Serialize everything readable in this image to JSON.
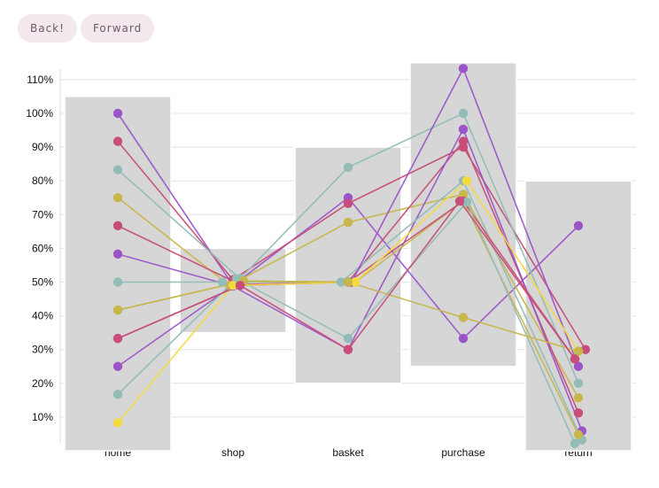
{
  "nav": {
    "back_label": "Back!",
    "forward_label": "Forward"
  },
  "chart_data": {
    "type": "line",
    "categories": [
      "home",
      "shop",
      "basket",
      "purchase",
      "return"
    ],
    "yticks": [
      "10%",
      "20%",
      "30%",
      "40%",
      "50%",
      "60%",
      "70%",
      "80%",
      "90%",
      "100%",
      "110%"
    ],
    "ylim": [
      0,
      115
    ],
    "grid": true,
    "legend": "none",
    "boxes": [
      {
        "category": "home",
        "low": 0,
        "high": 105
      },
      {
        "category": "shop",
        "low": 35,
        "high": 60
      },
      {
        "category": "basket",
        "low": 20,
        "high": 90
      },
      {
        "category": "purchase",
        "low": 25,
        "high": 115
      },
      {
        "category": "return",
        "low": 0,
        "high": 80
      }
    ],
    "series": [
      {
        "color": "#9c55c9",
        "values": [
          100,
          49,
          75,
          33.3,
          66.7
        ],
        "offsets": [
          0,
          0,
          0,
          0,
          0
        ]
      },
      {
        "color": "#c74e7a",
        "values": [
          91.7,
          50.7,
          73.3,
          90,
          30
        ],
        "offsets": [
          0,
          0,
          0,
          0,
          2
        ]
      },
      {
        "color": "#93bcb6",
        "values": [
          83.3,
          51,
          84,
          100,
          20
        ],
        "offsets": [
          0,
          2,
          0,
          0,
          0
        ]
      },
      {
        "color": "#c6b64b",
        "values": [
          75,
          49,
          67.7,
          76,
          15.7
        ],
        "offsets": [
          0,
          -1,
          0,
          0,
          0
        ]
      },
      {
        "color": "#c74e7a",
        "values": [
          66.7,
          49.3,
          50,
          91.7,
          11.2
        ],
        "offsets": [
          0,
          2,
          0,
          0,
          0
        ]
      },
      {
        "color": "#9c55c9",
        "values": [
          58.3,
          48.8,
          30,
          95.3,
          5.9
        ],
        "offsets": [
          0,
          0,
          0,
          0,
          1
        ]
      },
      {
        "color": "#93bcb6",
        "values": [
          50,
          50,
          50,
          80,
          3.2
        ],
        "offsets": [
          0,
          -3,
          -2,
          0,
          1
        ]
      },
      {
        "color": "#c6b64b",
        "values": [
          41.7,
          50.3,
          50,
          74,
          4.8
        ],
        "offsets": [
          0,
          3,
          2,
          0,
          0
        ]
      },
      {
        "color": "#c74e7a",
        "values": [
          33.3,
          49,
          50,
          74,
          27.2
        ],
        "offsets": [
          0,
          2,
          0,
          0,
          -1
        ]
      },
      {
        "color": "#9c55c9",
        "values": [
          25,
          49,
          50,
          113.3,
          25
        ],
        "offsets": [
          0,
          0,
          1,
          0,
          0
        ]
      },
      {
        "color": "#93bcb6",
        "values": [
          16.7,
          51,
          33.3,
          73.7,
          2.2
        ],
        "offsets": [
          0,
          1,
          0,
          1,
          -1
        ]
      },
      {
        "color": "#f3da3f",
        "values": [
          8.3,
          49,
          50,
          80,
          29.5
        ],
        "offsets": [
          0,
          0,
          2,
          1,
          0
        ]
      },
      {
        "color": "#c6b64b",
        "values": [
          41.7,
          50.3,
          50,
          39.5,
          29.5
        ],
        "offsets": [
          0,
          3,
          0,
          0,
          0
        ]
      },
      {
        "color": "#c74e7a",
        "values": [
          33.3,
          49,
          30,
          74,
          27.2
        ],
        "offsets": [
          0,
          2,
          0,
          -1,
          -1
        ]
      }
    ]
  }
}
